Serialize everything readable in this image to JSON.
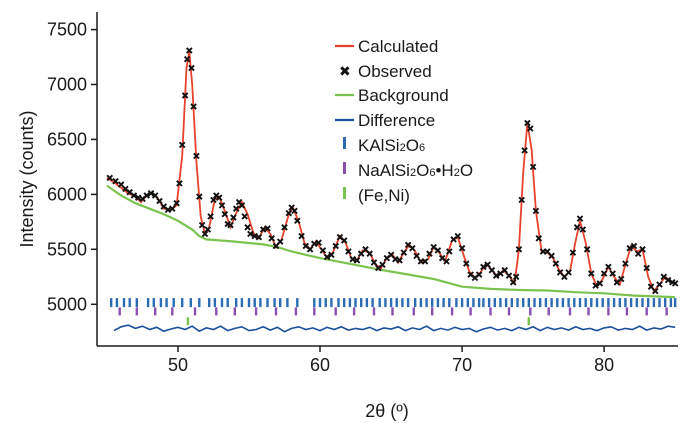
{
  "chart_data": {
    "type": "line",
    "xlabel": "2θ (º)",
    "ylabel": "Intensity (counts)",
    "xlim": [
      44.3,
      85.2
    ],
    "ylim": [
      4620,
      7660
    ],
    "x_ticks": [
      50,
      60,
      70,
      80
    ],
    "y_ticks": [
      5000,
      5500,
      6000,
      6500,
      7000,
      7500
    ],
    "colors": {
      "calculated": "#e8412c",
      "observed": "#111111",
      "background": "#7cc24f",
      "difference": "#1c4f9c",
      "kalsi2o6": "#2b6cb5",
      "naalsi2o6": "#8a4fb2",
      "feni": "#7cc24f"
    },
    "legend": {
      "position": "top-right",
      "calculated": "Calculated",
      "observed": "Observed",
      "background": "Background",
      "difference": "Difference",
      "k_base": "KAlSi",
      "k_sub1": "2",
      "k_mid": "O",
      "k_sub2": "6",
      "na_base": "NaAlSi",
      "na_sub1": "2",
      "na_mid": "O",
      "na_sub2": "6",
      "na_dot": "•H",
      "na_sub3": "2",
      "na_end": "O",
      "feni": "(Fe,Ni)"
    },
    "calculated": [
      [
        45.0,
        6150
      ],
      [
        45.5,
        6110
      ],
      [
        46.0,
        6060
      ],
      [
        46.5,
        6010
      ],
      [
        47.0,
        5980
      ],
      [
        47.4,
        5930
      ],
      [
        47.8,
        5990
      ],
      [
        48.2,
        6010
      ],
      [
        48.6,
        5960
      ],
      [
        49.0,
        5870
      ],
      [
        49.5,
        5860
      ],
      [
        49.9,
        5900
      ],
      [
        50.3,
        6350
      ],
      [
        50.6,
        7150
      ],
      [
        50.8,
        7300
      ],
      [
        51.0,
        7000
      ],
      [
        51.3,
        6300
      ],
      [
        51.6,
        5800
      ],
      [
        51.9,
        5640
      ],
      [
        52.2,
        5700
      ],
      [
        52.6,
        5960
      ],
      [
        52.9,
        5980
      ],
      [
        53.3,
        5850
      ],
      [
        53.7,
        5700
      ],
      [
        54.1,
        5830
      ],
      [
        54.5,
        5930
      ],
      [
        54.9,
        5820
      ],
      [
        55.3,
        5650
      ],
      [
        55.7,
        5600
      ],
      [
        56.1,
        5700
      ],
      [
        56.5,
        5640
      ],
      [
        56.9,
        5520
      ],
      [
        57.3,
        5590
      ],
      [
        57.8,
        5820
      ],
      [
        58.1,
        5880
      ],
      [
        58.5,
        5750
      ],
      [
        58.9,
        5560
      ],
      [
        59.3,
        5500
      ],
      [
        59.7,
        5570
      ],
      [
        60.1,
        5500
      ],
      [
        60.5,
        5420
      ],
      [
        60.9,
        5470
      ],
      [
        61.4,
        5620
      ],
      [
        61.8,
        5560
      ],
      [
        62.2,
        5420
      ],
      [
        62.6,
        5400
      ],
      [
        63.0,
        5490
      ],
      [
        63.5,
        5470
      ],
      [
        63.9,
        5360
      ],
      [
        64.3,
        5330
      ],
      [
        64.7,
        5420
      ],
      [
        65.1,
        5450
      ],
      [
        65.5,
        5380
      ],
      [
        65.9,
        5470
      ],
      [
        66.3,
        5540
      ],
      [
        66.7,
        5480
      ],
      [
        67.1,
        5380
      ],
      [
        67.6,
        5410
      ],
      [
        68.0,
        5520
      ],
      [
        68.4,
        5470
      ],
      [
        68.8,
        5390
      ],
      [
        69.3,
        5580
      ],
      [
        69.7,
        5610
      ],
      [
        70.1,
        5450
      ],
      [
        70.5,
        5300
      ],
      [
        70.9,
        5240
      ],
      [
        71.3,
        5290
      ],
      [
        71.7,
        5370
      ],
      [
        72.1,
        5310
      ],
      [
        72.5,
        5250
      ],
      [
        72.9,
        5310
      ],
      [
        73.3,
        5260
      ],
      [
        73.7,
        5190
      ],
      [
        74.0,
        5500
      ],
      [
        74.3,
        6200
      ],
      [
        74.6,
        6650
      ],
      [
        74.9,
        6400
      ],
      [
        75.2,
        5850
      ],
      [
        75.6,
        5480
      ],
      [
        76.0,
        5470
      ],
      [
        76.4,
        5420
      ],
      [
        76.8,
        5320
      ],
      [
        77.2,
        5250
      ],
      [
        77.6,
        5300
      ],
      [
        78.0,
        5580
      ],
      [
        78.3,
        5760
      ],
      [
        78.7,
        5560
      ],
      [
        79.1,
        5280
      ],
      [
        79.5,
        5160
      ],
      [
        79.9,
        5230
      ],
      [
        80.3,
        5340
      ],
      [
        80.7,
        5250
      ],
      [
        81.1,
        5180
      ],
      [
        81.5,
        5360
      ],
      [
        81.9,
        5530
      ],
      [
        82.3,
        5480
      ],
      [
        82.7,
        5500
      ],
      [
        83.1,
        5250
      ],
      [
        83.5,
        5120
      ],
      [
        83.9,
        5180
      ],
      [
        84.3,
        5250
      ],
      [
        84.7,
        5210
      ],
      [
        85.0,
        5190
      ]
    ],
    "background": [
      [
        45.0,
        6080
      ],
      [
        46.0,
        5990
      ],
      [
        47.0,
        5920
      ],
      [
        48.0,
        5870
      ],
      [
        49.0,
        5820
      ],
      [
        50.0,
        5760
      ],
      [
        51.0,
        5680
      ],
      [
        51.5,
        5620
      ],
      [
        52.0,
        5590
      ],
      [
        54.0,
        5570
      ],
      [
        56.0,
        5545
      ],
      [
        57.0,
        5520
      ],
      [
        58.0,
        5480
      ],
      [
        60.0,
        5420
      ],
      [
        62.0,
        5370
      ],
      [
        64.0,
        5320
      ],
      [
        66.0,
        5275
      ],
      [
        68.0,
        5230
      ],
      [
        70.0,
        5160
      ],
      [
        72.0,
        5140
      ],
      [
        74.0,
        5130
      ],
      [
        76.0,
        5125
      ],
      [
        78.0,
        5110
      ],
      [
        80.0,
        5100
      ],
      [
        82.0,
        5080
      ],
      [
        84.0,
        5070
      ],
      [
        85.0,
        5065
      ]
    ],
    "difference_baseline": 4790,
    "difference": [
      [
        45.5,
        4760
      ],
      [
        46.0,
        4795
      ],
      [
        46.5,
        4810
      ],
      [
        47.0,
        4780
      ],
      [
        47.5,
        4800
      ],
      [
        48.0,
        4770
      ],
      [
        48.5,
        4790
      ],
      [
        49.0,
        4755
      ],
      [
        49.5,
        4775
      ],
      [
        50.0,
        4790
      ],
      [
        50.5,
        4770
      ],
      [
        51.0,
        4800
      ],
      [
        51.5,
        4755
      ],
      [
        52.0,
        4785
      ],
      [
        52.5,
        4770
      ],
      [
        53.0,
        4800
      ],
      [
        53.5,
        4760
      ],
      [
        54.0,
        4780
      ],
      [
        54.5,
        4795
      ],
      [
        55.0,
        4760
      ],
      [
        55.5,
        4770
      ],
      [
        56.0,
        4795
      ],
      [
        56.5,
        4765
      ],
      [
        57.0,
        4790
      ],
      [
        57.5,
        4750
      ],
      [
        58.0,
        4780
      ],
      [
        58.5,
        4795
      ],
      [
        59.0,
        4770
      ],
      [
        59.5,
        4785
      ],
      [
        60.0,
        4760
      ],
      [
        60.5,
        4790
      ],
      [
        61.0,
        4770
      ],
      [
        61.5,
        4795
      ],
      [
        62.0,
        4765
      ],
      [
        62.5,
        4780
      ],
      [
        63.0,
        4770
      ],
      [
        63.5,
        4790
      ],
      [
        64.0,
        4760
      ],
      [
        64.5,
        4785
      ],
      [
        65.0,
        4775
      ],
      [
        65.5,
        4795
      ],
      [
        66.0,
        4760
      ],
      [
        66.5,
        4785
      ],
      [
        67.0,
        4770
      ],
      [
        67.5,
        4800
      ],
      [
        68.0,
        4760
      ],
      [
        68.5,
        4780
      ],
      [
        69.0,
        4765
      ],
      [
        69.5,
        4790
      ],
      [
        70.0,
        4770
      ],
      [
        70.5,
        4780
      ],
      [
        71.0,
        4750
      ],
      [
        71.5,
        4775
      ],
      [
        72.0,
        4790
      ],
      [
        72.5,
        4765
      ],
      [
        73.0,
        4780
      ],
      [
        73.5,
        4760
      ],
      [
        74.0,
        4790
      ],
      [
        74.5,
        4770
      ],
      [
        75.0,
        4795
      ],
      [
        75.5,
        4760
      ],
      [
        76.0,
        4790
      ],
      [
        76.5,
        4770
      ],
      [
        77.0,
        4785
      ],
      [
        77.5,
        4765
      ],
      [
        78.0,
        4795
      ],
      [
        78.5,
        4770
      ],
      [
        79.0,
        4780
      ],
      [
        79.5,
        4760
      ],
      [
        80.0,
        4785
      ],
      [
        80.5,
        4795
      ],
      [
        81.0,
        4765
      ],
      [
        81.5,
        4780
      ],
      [
        82.0,
        4770
      ],
      [
        82.5,
        4800
      ],
      [
        83.0,
        4765
      ],
      [
        83.5,
        4785
      ],
      [
        84.0,
        4775
      ],
      [
        84.5,
        4800
      ],
      [
        85.0,
        4790
      ]
    ],
    "tick_rows": {
      "kalsi2o6_y": 5015,
      "naalsi2o6_y": 4935,
      "feni_y": 4845,
      "kalsi2o6": [
        45.3,
        45.7,
        46.2,
        46.6,
        47.1,
        47.9,
        48.3,
        48.8,
        49.2,
        49.7,
        50.3,
        50.9,
        51.5,
        52.2,
        52.6,
        53.1,
        53.5,
        54.1,
        54.5,
        55.0,
        55.4,
        55.8,
        56.3,
        56.8,
        57.2,
        57.7,
        58.4,
        59.6,
        60.0,
        60.4,
        60.8,
        61.3,
        61.7,
        62.1,
        62.5,
        62.9,
        63.3,
        63.7,
        64.2,
        64.6,
        65.0,
        65.4,
        65.8,
        66.2,
        66.7,
        67.1,
        67.5,
        67.9,
        68.3,
        68.7,
        69.1,
        69.6,
        70.0,
        70.4,
        70.8,
        71.2,
        71.5,
        71.9,
        72.3,
        72.7,
        73.1,
        73.5,
        73.9,
        74.3,
        74.7,
        75.1,
        75.5,
        75.9,
        76.3,
        76.7,
        77.1,
        77.5,
        77.9,
        78.3,
        78.7,
        79.1,
        79.5,
        79.9,
        80.3,
        80.7,
        81.1,
        81.5,
        81.9,
        82.3,
        82.7,
        83.1,
        83.5,
        83.9,
        84.3,
        84.7,
        85.0
      ],
      "naalsi2o6": [
        45.9,
        47.1,
        48.4,
        49.6,
        51.2,
        52.7,
        54.0,
        55.5,
        56.9,
        58.3,
        59.6,
        61.1,
        62.4,
        63.8,
        65.1,
        66.6,
        67.9,
        69.3,
        70.6,
        72.0,
        73.3,
        74.8,
        76.1,
        77.6,
        78.9,
        80.3,
        81.6,
        83.0,
        84.4
      ],
      "feni": [
        50.7,
        74.7
      ]
    },
    "observed": [
      [
        45.2,
        6150
      ],
      [
        45.6,
        6120
      ],
      [
        46.0,
        6090
      ],
      [
        46.3,
        6050
      ],
      [
        46.6,
        6020
      ],
      [
        46.9,
        5990
      ],
      [
        47.2,
        5970
      ],
      [
        47.5,
        5960
      ],
      [
        47.8,
        5990
      ],
      [
        48.1,
        6010
      ],
      [
        48.4,
        5990
      ],
      [
        48.7,
        5940
      ],
      [
        49.0,
        5890
      ],
      [
        49.3,
        5860
      ],
      [
        49.6,
        5870
      ],
      [
        49.9,
        5920
      ],
      [
        50.1,
        6100
      ],
      [
        50.3,
        6450
      ],
      [
        50.5,
        6900
      ],
      [
        50.65,
        7230
      ],
      [
        50.8,
        7310
      ],
      [
        50.95,
        7150
      ],
      [
        51.1,
        6800
      ],
      [
        51.3,
        6350
      ],
      [
        51.5,
        5980
      ],
      [
        51.7,
        5720
      ],
      [
        51.9,
        5640
      ],
      [
        52.1,
        5680
      ],
      [
        52.3,
        5800
      ],
      [
        52.5,
        5950
      ],
      [
        52.7,
        5990
      ],
      [
        52.9,
        5970
      ],
      [
        53.1,
        5900
      ],
      [
        53.3,
        5820
      ],
      [
        53.5,
        5730
      ],
      [
        53.7,
        5720
      ],
      [
        53.9,
        5790
      ],
      [
        54.1,
        5870
      ],
      [
        54.3,
        5930
      ],
      [
        54.5,
        5900
      ],
      [
        54.7,
        5800
      ],
      [
        54.9,
        5700
      ],
      [
        55.1,
        5640
      ],
      [
        55.4,
        5620
      ],
      [
        55.7,
        5610
      ],
      [
        56.0,
        5680
      ],
      [
        56.3,
        5690
      ],
      [
        56.6,
        5600
      ],
      [
        56.9,
        5530
      ],
      [
        57.2,
        5570
      ],
      [
        57.5,
        5700
      ],
      [
        57.8,
        5830
      ],
      [
        58.0,
        5880
      ],
      [
        58.2,
        5850
      ],
      [
        58.4,
        5760
      ],
      [
        58.7,
        5620
      ],
      [
        59.0,
        5530
      ],
      [
        59.3,
        5500
      ],
      [
        59.6,
        5550
      ],
      [
        59.9,
        5560
      ],
      [
        60.2,
        5490
      ],
      [
        60.5,
        5430
      ],
      [
        60.8,
        5450
      ],
      [
        61.1,
        5530
      ],
      [
        61.4,
        5610
      ],
      [
        61.7,
        5580
      ],
      [
        62.0,
        5480
      ],
      [
        62.3,
        5410
      ],
      [
        62.6,
        5400
      ],
      [
        62.9,
        5460
      ],
      [
        63.2,
        5500
      ],
      [
        63.5,
        5460
      ],
      [
        63.8,
        5380
      ],
      [
        64.1,
        5330
      ],
      [
        64.4,
        5360
      ],
      [
        64.7,
        5420
      ],
      [
        65.0,
        5450
      ],
      [
        65.3,
        5410
      ],
      [
        65.6,
        5400
      ],
      [
        65.9,
        5470
      ],
      [
        66.2,
        5540
      ],
      [
        66.5,
        5510
      ],
      [
        66.8,
        5440
      ],
      [
        67.1,
        5390
      ],
      [
        67.4,
        5390
      ],
      [
        67.7,
        5460
      ],
      [
        68.0,
        5520
      ],
      [
        68.3,
        5490
      ],
      [
        68.6,
        5420
      ],
      [
        68.9,
        5390
      ],
      [
        69.1,
        5480
      ],
      [
        69.4,
        5590
      ],
      [
        69.7,
        5620
      ],
      [
        70.0,
        5510
      ],
      [
        70.3,
        5370
      ],
      [
        70.6,
        5270
      ],
      [
        70.9,
        5240
      ],
      [
        71.2,
        5270
      ],
      [
        71.5,
        5340
      ],
      [
        71.8,
        5360
      ],
      [
        72.1,
        5310
      ],
      [
        72.4,
        5260
      ],
      [
        72.7,
        5280
      ],
      [
        73.0,
        5310
      ],
      [
        73.3,
        5260
      ],
      [
        73.6,
        5200
      ],
      [
        73.8,
        5250
      ],
      [
        74.0,
        5500
      ],
      [
        74.2,
        5950
      ],
      [
        74.4,
        6400
      ],
      [
        74.6,
        6650
      ],
      [
        74.8,
        6600
      ],
      [
        75.0,
        6250
      ],
      [
        75.2,
        5850
      ],
      [
        75.4,
        5600
      ],
      [
        75.7,
        5480
      ],
      [
        76.0,
        5480
      ],
      [
        76.3,
        5440
      ],
      [
        76.6,
        5370
      ],
      [
        76.9,
        5290
      ],
      [
        77.2,
        5250
      ],
      [
        77.5,
        5290
      ],
      [
        77.8,
        5470
      ],
      [
        78.1,
        5700
      ],
      [
        78.3,
        5780
      ],
      [
        78.5,
        5680
      ],
      [
        78.8,
        5500
      ],
      [
        79.1,
        5280
      ],
      [
        79.4,
        5170
      ],
      [
        79.7,
        5190
      ],
      [
        80.0,
        5280
      ],
      [
        80.3,
        5340
      ],
      [
        80.6,
        5280
      ],
      [
        80.9,
        5200
      ],
      [
        81.2,
        5230
      ],
      [
        81.5,
        5370
      ],
      [
        81.8,
        5510
      ],
      [
        82.1,
        5530
      ],
      [
        82.4,
        5460
      ],
      [
        82.7,
        5500
      ],
      [
        83.0,
        5330
      ],
      [
        83.3,
        5160
      ],
      [
        83.6,
        5120
      ],
      [
        83.9,
        5180
      ],
      [
        84.2,
        5250
      ],
      [
        84.5,
        5220
      ],
      [
        84.8,
        5200
      ],
      [
        85.0,
        5190
      ]
    ]
  }
}
